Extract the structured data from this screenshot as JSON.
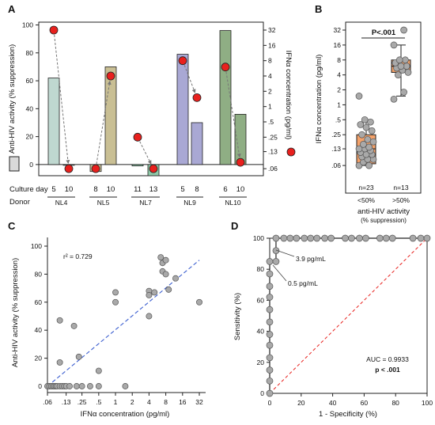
{
  "panels": {
    "a": "A",
    "b": "B",
    "c": "C",
    "d": "D"
  },
  "chart_data": [
    {
      "panel": "A",
      "type": "bar",
      "ylabel": "Anti-HIV activity (% suppression)",
      "ylabel_right": "IFNα concentration (pg/ml)",
      "ylim": [
        -8,
        102
      ],
      "yticks": [
        "0",
        "20",
        "40",
        "60",
        "80",
        "100"
      ],
      "yticks_right": [
        "32",
        "16",
        "8",
        "4",
        "2",
        "1",
        ".5",
        ".25",
        ".13",
        ".06"
      ],
      "row_labels": {
        "culture_day": "Culture day",
        "donor": "Donor"
      },
      "groups": [
        {
          "donor": "NL4",
          "days": [
            "5",
            "10"
          ],
          "suppression": [
            62,
            0
          ],
          "ifn": [
            32,
            0.06
          ],
          "colors": [
            "#bfd8d0",
            "#bfd8d0"
          ]
        },
        {
          "donor": "NL5",
          "days": [
            "8",
            "10"
          ],
          "suppression": [
            -5,
            70
          ],
          "ifn": [
            0.06,
            4
          ],
          "colors": [
            "#c9bf94",
            "#c9bf94"
          ]
        },
        {
          "donor": "NL7",
          "days": [
            "11",
            "13"
          ],
          "suppression": [
            -1,
            -8
          ],
          "ifn": [
            0.25,
            0.06
          ],
          "colors": [
            "#8fc9a8",
            "#8fc9a8"
          ]
        },
        {
          "donor": "NL9",
          "days": [
            "5",
            "8"
          ],
          "suppression": [
            79,
            30
          ],
          "ifn": [
            8,
            1.5
          ],
          "colors": [
            "#a9a8d4",
            "#a9a8d4"
          ]
        },
        {
          "donor": "NL10",
          "days": [
            "6",
            "10"
          ],
          "suppression": [
            96,
            36
          ],
          "ifn": [
            6,
            0.08
          ],
          "colors": [
            "#8fae84",
            "#8fae84"
          ]
        }
      ]
    },
    {
      "panel": "B",
      "type": "box",
      "ylabel": "IFNα concentration (pg/ml)",
      "yticks": [
        "32",
        "16",
        "8",
        "4",
        "2",
        "1",
        ".5",
        ".25",
        ".13",
        ".06"
      ],
      "categories": [
        "<50%",
        ">50%"
      ],
      "n_labels": [
        "n=23",
        "n=13"
      ],
      "xlabel": "anti-HIV activity",
      "xlabel_sub": "(% suppression)",
      "significance": "P<.001",
      "box_color": "#f4a26a",
      "boxes": [
        {
          "q1": 0.065,
          "median": 0.13,
          "q3": 0.25,
          "whisker_low": 0.06,
          "whisker_high": 0.5,
          "outliers": [
            1.5
          ]
        },
        {
          "q1": 4.5,
          "median": 6,
          "q3": 8,
          "whisker_low": 1.5,
          "whisker_high": 16,
          "outliers": [
            32
          ]
        }
      ],
      "points": [
        [
          0.06,
          0.06,
          0.07,
          0.08,
          0.08,
          0.09,
          0.1,
          0.1,
          0.11,
          0.12,
          0.13,
          0.13,
          0.14,
          0.16,
          0.18,
          0.2,
          0.25,
          0.3,
          0.35,
          0.4,
          0.45,
          0.5,
          1.5
        ],
        [
          1.3,
          1.8,
          4,
          4.5,
          5,
          5.5,
          6,
          6,
          7,
          8,
          8,
          16,
          32
        ]
      ]
    },
    {
      "panel": "C",
      "type": "scatter",
      "xlabel": "IFNα concentration (pg/ml)",
      "ylabel": "Anti-HIV activity (% suppression)",
      "xticks": [
        ".06",
        ".13",
        ".25",
        ".5",
        "1",
        "2",
        "4",
        "8",
        "16",
        "32"
      ],
      "yticks": [
        "0",
        "20",
        "40",
        "60",
        "80",
        "100"
      ],
      "annotation": "r² = 0.729",
      "fit": {
        "x": [
          0.06,
          32
        ],
        "y": [
          0,
          90
        ]
      },
      "points": [
        [
          0.06,
          0
        ],
        [
          0.065,
          0
        ],
        [
          0.07,
          0
        ],
        [
          0.075,
          0
        ],
        [
          0.08,
          0
        ],
        [
          0.085,
          0
        ],
        [
          0.09,
          0
        ],
        [
          0.1,
          0
        ],
        [
          0.11,
          0
        ],
        [
          0.12,
          0
        ],
        [
          0.13,
          0
        ],
        [
          0.15,
          0
        ],
        [
          0.2,
          0
        ],
        [
          0.25,
          0
        ],
        [
          0.35,
          0
        ],
        [
          0.5,
          0
        ],
        [
          0.1,
          47
        ],
        [
          0.1,
          17
        ],
        [
          0.18,
          43
        ],
        [
          0.22,
          21
        ],
        [
          0.5,
          11
        ],
        [
          1.5,
          0
        ],
        [
          1,
          67
        ],
        [
          1,
          60
        ],
        [
          4,
          68
        ],
        [
          4,
          65
        ],
        [
          4,
          50
        ],
        [
          5,
          67
        ],
        [
          6.5,
          92
        ],
        [
          7,
          88
        ],
        [
          7,
          82
        ],
        [
          8,
          90
        ],
        [
          8,
          80
        ],
        [
          9,
          69
        ],
        [
          12,
          77
        ],
        [
          32,
          60
        ]
      ]
    },
    {
      "panel": "D",
      "type": "line",
      "title": "",
      "xlabel": "1 - Specificity (%)",
      "ylabel": "Sensitivity (%)",
      "xticks": [
        "0",
        "20",
        "40",
        "60",
        "80",
        "100"
      ],
      "yticks": [
        "0",
        "20",
        "40",
        "60",
        "80",
        "100"
      ],
      "annotations": {
        "t1": "3.9 pg/mL",
        "t2": "0.5 pg/mL",
        "auc": "AUC = 0.9933",
        "p": "p < .001"
      },
      "roc_points": [
        [
          0,
          0
        ],
        [
          0,
          8
        ],
        [
          0,
          15
        ],
        [
          0,
          23
        ],
        [
          0,
          31
        ],
        [
          0,
          38
        ],
        [
          0,
          46
        ],
        [
          0,
          54
        ],
        [
          0,
          62
        ],
        [
          0,
          69
        ],
        [
          0,
          77
        ],
        [
          0,
          85
        ],
        [
          4,
          85
        ],
        [
          4,
          92
        ],
        [
          4,
          100
        ],
        [
          9,
          100
        ],
        [
          13,
          100
        ],
        [
          17,
          100
        ],
        [
          22,
          100
        ],
        [
          26,
          100
        ],
        [
          30,
          100
        ],
        [
          35,
          100
        ],
        [
          39,
          100
        ],
        [
          48,
          100
        ],
        [
          52,
          100
        ],
        [
          57,
          100
        ],
        [
          61,
          100
        ],
        [
          70,
          100
        ],
        [
          74,
          100
        ],
        [
          78,
          100
        ],
        [
          91,
          100
        ],
        [
          96,
          100
        ],
        [
          100,
          100
        ]
      ]
    }
  ]
}
